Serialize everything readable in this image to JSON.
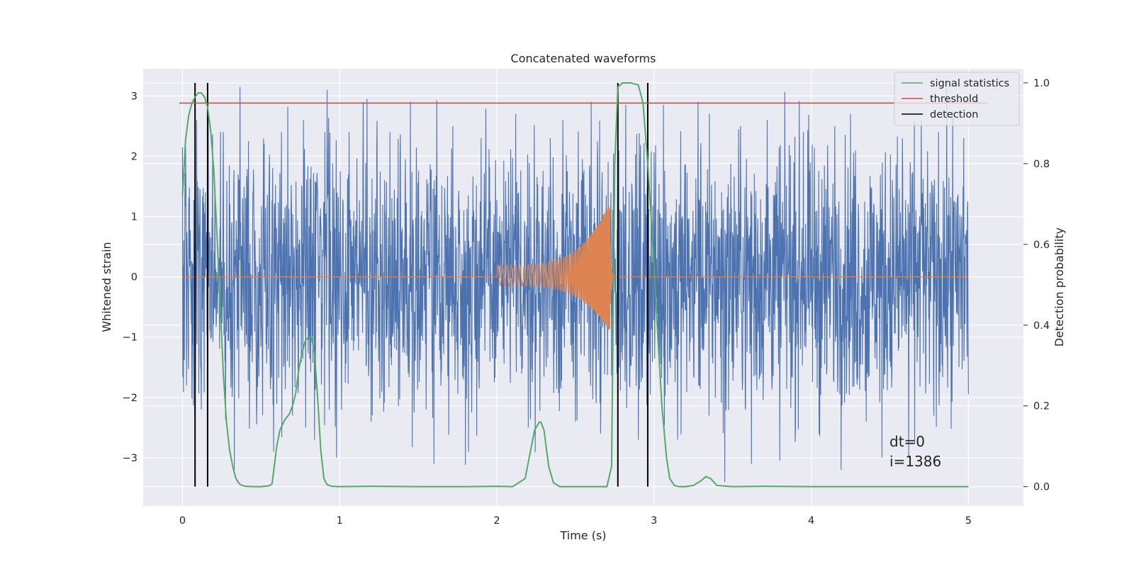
{
  "chart_data": {
    "type": "line",
    "title": "Concatenated waveforms",
    "xlabel": "Time (s)",
    "ylabel": "Whitened strain",
    "y2label": "Detection probability",
    "xlim": [
      -0.25,
      5.35
    ],
    "ylim": [
      -3.8,
      3.45
    ],
    "y2lim": [
      -0.048,
      1.035
    ],
    "xticks": [
      0,
      1,
      2,
      3,
      4,
      5
    ],
    "yticks": [
      -3,
      -2,
      -1,
      0,
      1,
      2,
      3
    ],
    "y2ticks": [
      0.0,
      0.2,
      0.4,
      0.6,
      0.8,
      1.0
    ],
    "xtick_labels": [
      "0",
      "1",
      "2",
      "3",
      "4",
      "5"
    ],
    "ytick_labels": [
      "−3",
      "−2",
      "−1",
      "0",
      "1",
      "2",
      "3"
    ],
    "y2tick_labels": [
      "0.0",
      "0.2",
      "0.4",
      "0.6",
      "0.8",
      "1.0"
    ],
    "grid": true,
    "legend_position": "top-right",
    "colors": {
      "background": "#eaeaf2",
      "grid": "#ffffff",
      "strain": "#4c72b0",
      "template": "#dd8452",
      "statistic": "#55a868",
      "threshold": "#c44e52",
      "detection": "#000000"
    },
    "series": [
      {
        "name": "",
        "axis": "left",
        "kind": "noise",
        "x_range": [
          0,
          5
        ],
        "envelope": 1.5,
        "peaks": [
          {
            "x": 0.0,
            "y": 2.15
          },
          {
            "x": 0.09,
            "y": 2.6
          },
          {
            "x": 0.12,
            "y": -2.2
          },
          {
            "x": 0.26,
            "y": 2.4
          },
          {
            "x": 0.33,
            "y": -3.2
          },
          {
            "x": 0.42,
            "y": 2.25
          },
          {
            "x": 0.52,
            "y": 2.2
          },
          {
            "x": 0.58,
            "y": -2.9
          },
          {
            "x": 0.63,
            "y": 2.4
          },
          {
            "x": 0.7,
            "y": -2.3
          },
          {
            "x": 0.77,
            "y": 2.6
          },
          {
            "x": 0.84,
            "y": -2.7
          },
          {
            "x": 0.92,
            "y": 3.1
          },
          {
            "x": 0.98,
            "y": -3.0
          },
          {
            "x": 1.06,
            "y": 2.4
          },
          {
            "x": 1.15,
            "y": 2.9
          },
          {
            "x": 1.2,
            "y": -2.4
          },
          {
            "x": 1.32,
            "y": 2.4
          },
          {
            "x": 1.45,
            "y": 2.9
          },
          {
            "x": 1.55,
            "y": -2.2
          },
          {
            "x": 1.6,
            "y": -3.1
          },
          {
            "x": 1.72,
            "y": 2.5
          },
          {
            "x": 1.82,
            "y": -2.9
          },
          {
            "x": 1.9,
            "y": 2.3
          },
          {
            "x": 2.12,
            "y": 2.7
          },
          {
            "x": 2.2,
            "y": -2.5
          },
          {
            "x": 2.34,
            "y": 2.3
          },
          {
            "x": 2.42,
            "y": 2.6
          },
          {
            "x": 2.5,
            "y": -2.4
          },
          {
            "x": 2.6,
            "y": 2.9
          },
          {
            "x": 2.66,
            "y": -2.6
          },
          {
            "x": 2.82,
            "y": 2.85
          },
          {
            "x": 2.9,
            "y": -2.7
          },
          {
            "x": 3.06,
            "y": 2.85
          },
          {
            "x": 3.15,
            "y": -2.7
          },
          {
            "x": 3.28,
            "y": 2.9
          },
          {
            "x": 3.35,
            "y": -2.3
          },
          {
            "x": 3.45,
            "y": -3.5
          },
          {
            "x": 3.55,
            "y": 2.5
          },
          {
            "x": 3.62,
            "y": -3.1
          },
          {
            "x": 3.72,
            "y": 2.6
          },
          {
            "x": 3.8,
            "y": -3.05
          },
          {
            "x": 3.95,
            "y": 2.4
          },
          {
            "x": 4.05,
            "y": -2.6
          },
          {
            "x": 4.15,
            "y": 2.5
          },
          {
            "x": 4.25,
            "y": 2.7
          },
          {
            "x": 4.35,
            "y": -2.4
          },
          {
            "x": 4.45,
            "y": -3.0
          },
          {
            "x": 4.58,
            "y": 2.3
          },
          {
            "x": 4.62,
            "y": -3.0
          },
          {
            "x": 4.7,
            "y": 2.6
          },
          {
            "x": 4.78,
            "y": -2.3
          },
          {
            "x": 4.9,
            "y": 2.75
          },
          {
            "x": 4.97,
            "y": 2.3
          },
          {
            "x": 5.0,
            "y": -1.95
          }
        ]
      },
      {
        "name": "",
        "axis": "left",
        "kind": "chirp",
        "x_range": [
          0,
          5
        ],
        "chirp_start": 2.0,
        "merger": 2.72,
        "ringdown_end": 2.76,
        "start_amplitude": 0.2,
        "peak_max": 1.25,
        "peak_min": -0.92,
        "start_frequency": 35,
        "end_frequency": 240
      },
      {
        "name": "signal statistics",
        "axis": "right",
        "kind": "line",
        "x": [
          0.0,
          0.02,
          0.04,
          0.06,
          0.08,
          0.1,
          0.12,
          0.14,
          0.16,
          0.18,
          0.2,
          0.22,
          0.24,
          0.26,
          0.28,
          0.3,
          0.32,
          0.34,
          0.36,
          0.38,
          0.4,
          0.45,
          0.5,
          0.55,
          0.57,
          0.6,
          0.62,
          0.65,
          0.68,
          0.7,
          0.72,
          0.74,
          0.76,
          0.78,
          0.8,
          0.82,
          0.84,
          0.86,
          0.88,
          0.9,
          0.92,
          0.95,
          1.0,
          1.2,
          1.5,
          1.8,
          2.0,
          2.1,
          2.18,
          2.21,
          2.24,
          2.27,
          2.28,
          2.3,
          2.33,
          2.36,
          2.4,
          2.5,
          2.6,
          2.7,
          2.73,
          2.75,
          2.77,
          2.8,
          2.85,
          2.9,
          2.93,
          2.96,
          3.0,
          3.02,
          3.05,
          3.08,
          3.1,
          3.13,
          3.16,
          3.2,
          3.25,
          3.3,
          3.33,
          3.36,
          3.4,
          3.5,
          3.7,
          4.0,
          4.5,
          5.0
        ],
        "y": [
          0.72,
          0.86,
          0.92,
          0.95,
          0.965,
          0.975,
          0.975,
          0.965,
          0.94,
          0.88,
          0.78,
          0.62,
          0.45,
          0.28,
          0.16,
          0.09,
          0.05,
          0.02,
          0.008,
          0.003,
          0.001,
          0.0,
          0.0,
          0.002,
          0.007,
          0.1,
          0.14,
          0.165,
          0.18,
          0.2,
          0.23,
          0.29,
          0.33,
          0.36,
          0.37,
          0.37,
          0.33,
          0.22,
          0.09,
          0.02,
          0.005,
          0.001,
          0.0,
          0.001,
          0.0,
          0.0,
          0.001,
          0.0,
          0.02,
          0.08,
          0.14,
          0.16,
          0.16,
          0.14,
          0.05,
          0.01,
          0.0,
          0.0,
          0.0,
          0.0,
          0.05,
          0.8,
          0.99,
          1.0,
          1.0,
          0.995,
          0.95,
          0.8,
          0.55,
          0.4,
          0.2,
          0.07,
          0.02,
          0.003,
          0.0,
          0.0,
          0.003,
          0.015,
          0.025,
          0.02,
          0.003,
          0.0,
          0.001,
          0.0,
          0.0,
          0.0
        ]
      },
      {
        "name": "threshold",
        "axis": "right",
        "kind": "hline",
        "y": 0.95,
        "x_range": [
          -0.02,
          5.12
        ]
      },
      {
        "name": "detection",
        "axis": "right",
        "kind": "vlines",
        "x": [
          0.08,
          0.16,
          2.77,
          2.96
        ],
        "y_range": [
          0.0,
          1.0
        ]
      }
    ],
    "annotation": [
      "dt=0",
      "i=1386"
    ]
  }
}
